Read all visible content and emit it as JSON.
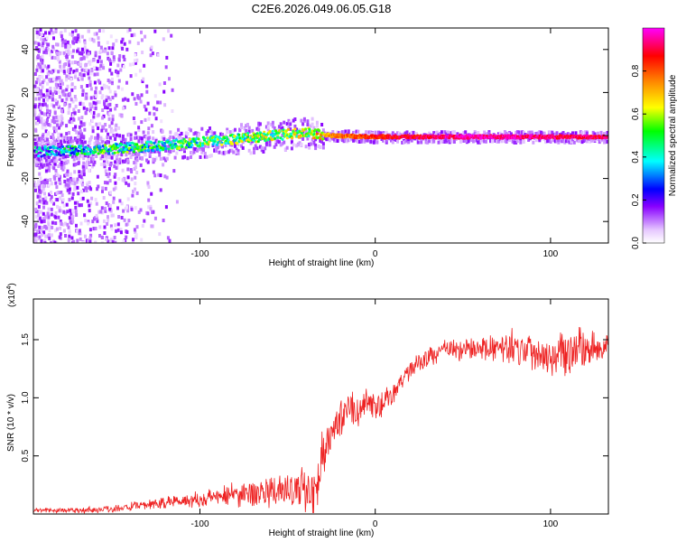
{
  "title": "C2E6.2026.049.06.05.G18",
  "chart_data": [
    {
      "type": "heatmap",
      "name": "spectrogram",
      "xlabel": "Height of straight line (km)",
      "ylabel": "Frequency (Hz)",
      "xlim": [
        -195,
        133
      ],
      "ylim": [
        -50,
        50
      ],
      "xticks": [
        -100,
        0,
        100
      ],
      "yticks": [
        -40,
        -20,
        0,
        20,
        40
      ],
      "colorbar": {
        "label": "Normalized spectral amplitude",
        "range": [
          0,
          1
        ],
        "ticks": [
          0.0,
          0.2,
          0.4,
          0.6,
          0.8
        ],
        "colors": [
          "#ffffff",
          "#e6c8ff",
          "#8800ff",
          "#0000ff",
          "#00ffff",
          "#00ff00",
          "#ffff00",
          "#ff8800",
          "#ff0000",
          "#ff00ff"
        ]
      },
      "ridge": [
        {
          "x": -195,
          "freq": -7,
          "amp": 0.3
        },
        {
          "x": -160,
          "freq": -6,
          "amp": 0.45
        },
        {
          "x": -120,
          "freq": -4,
          "amp": 0.45
        },
        {
          "x": -80,
          "freq": -1,
          "amp": 0.5
        },
        {
          "x": -40,
          "freq": 2,
          "amp": 0.55
        },
        {
          "x": -25,
          "freq": 0.5,
          "amp": 0.75
        },
        {
          "x": 0,
          "freq": 0,
          "amp": 0.85
        },
        {
          "x": 50,
          "freq": 0,
          "amp": 0.95
        },
        {
          "x": 133,
          "freq": 0,
          "amp": 0.9
        }
      ]
    },
    {
      "type": "line",
      "name": "snr",
      "xlabel": "Height of straight line (km)",
      "ylabel": "SNR (10 * v/v)",
      "y_multiplier_label": "(x10",
      "y_multiplier_exp": "4",
      "xlim": [
        -195,
        133
      ],
      "ylim": [
        0,
        18500
      ],
      "xticks": [
        -100,
        0,
        100
      ],
      "yticks": [
        5000,
        10000,
        15000
      ],
      "ytick_labels": [
        "0.5",
        "1.0",
        "1.5"
      ],
      "color": "#ee2222",
      "envelope": {
        "x": [
          -195,
          -160,
          -140,
          -120,
          -100,
          -80,
          -60,
          -40,
          -33,
          -30,
          -25,
          -20,
          -15,
          -10,
          -5,
          0,
          5,
          10,
          15,
          20,
          30,
          40,
          50,
          60,
          70,
          80,
          90,
          100,
          110,
          120,
          133
        ],
        "y": [
          300,
          350,
          600,
          1000,
          1300,
          1700,
          1900,
          2000,
          2500,
          5500,
          7000,
          8000,
          9500,
          8500,
          9800,
          9000,
          9600,
          10200,
          11500,
          12500,
          13500,
          14200,
          14100,
          14300,
          14200,
          14400,
          14000,
          13800,
          14000,
          14300,
          14200
        ]
      },
      "noise": {
        "x": [
          -195,
          -130,
          -60,
          -33,
          -25,
          20,
          60,
          90,
          133
        ],
        "amplitude": [
          250,
          500,
          1600,
          2800,
          2000,
          900,
          1200,
          2200,
          2200
        ]
      }
    }
  ]
}
